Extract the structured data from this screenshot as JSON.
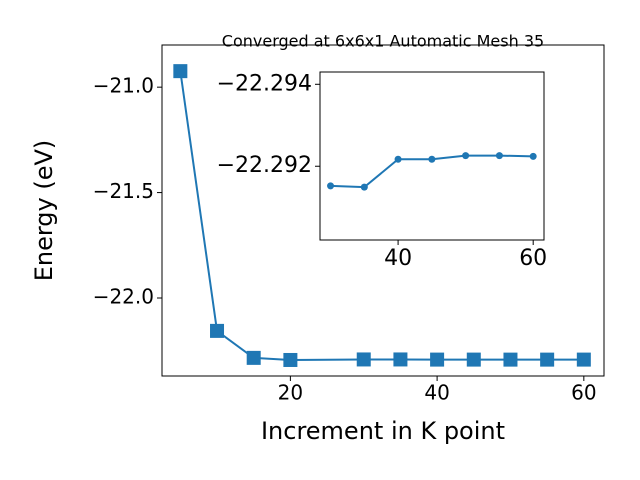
{
  "chart_data": [
    {
      "type": "line",
      "title": "Converged at 6x6x1 Automatic Mesh 35",
      "x_label": "Increment in K point",
      "y_label": "Energy (eV)",
      "x": [
        5,
        10,
        15,
        20,
        30,
        35,
        40,
        45,
        50,
        55,
        60
      ],
      "series": [
        {
          "name": "Energy",
          "color": "#1f77b4",
          "marker": "square",
          "values": [
            -20.924,
            -22.156,
            -22.284,
            -22.294,
            -22.2915,
            -22.2915,
            -22.2922,
            -22.2922,
            -22.2923,
            -22.2923,
            -22.2922
          ]
        }
      ],
      "xlim": [
        2.5,
        62.75
      ],
      "ylim": [
        -22.37,
        -20.8
      ],
      "xticks": [
        20,
        40,
        60
      ],
      "yticks": [
        {
          "value": -22.0,
          "label": "−22.0"
        },
        {
          "value": -21.5,
          "label": "−21.5"
        },
        {
          "value": -21.0,
          "label": "−21.0"
        }
      ]
    },
    {
      "type": "line",
      "x": [
        30,
        35,
        40,
        45,
        50,
        55,
        60
      ],
      "series": [
        {
          "name": "Energy",
          "color": "#1f77b4",
          "marker": "circle",
          "values": [
            -22.29152,
            -22.29149,
            -22.29217,
            -22.29217,
            -22.29226,
            -22.29226,
            -22.29224
          ]
        }
      ],
      "xlim": [
        28.44,
        61.6
      ],
      "ylim": [
        -22.2902,
        -22.2943
      ],
      "xticks": [
        40,
        60
      ],
      "yticks": [
        {
          "value": -22.294,
          "label": "−22.294"
        },
        {
          "value": -22.292,
          "label": "−22.292"
        }
      ]
    }
  ]
}
